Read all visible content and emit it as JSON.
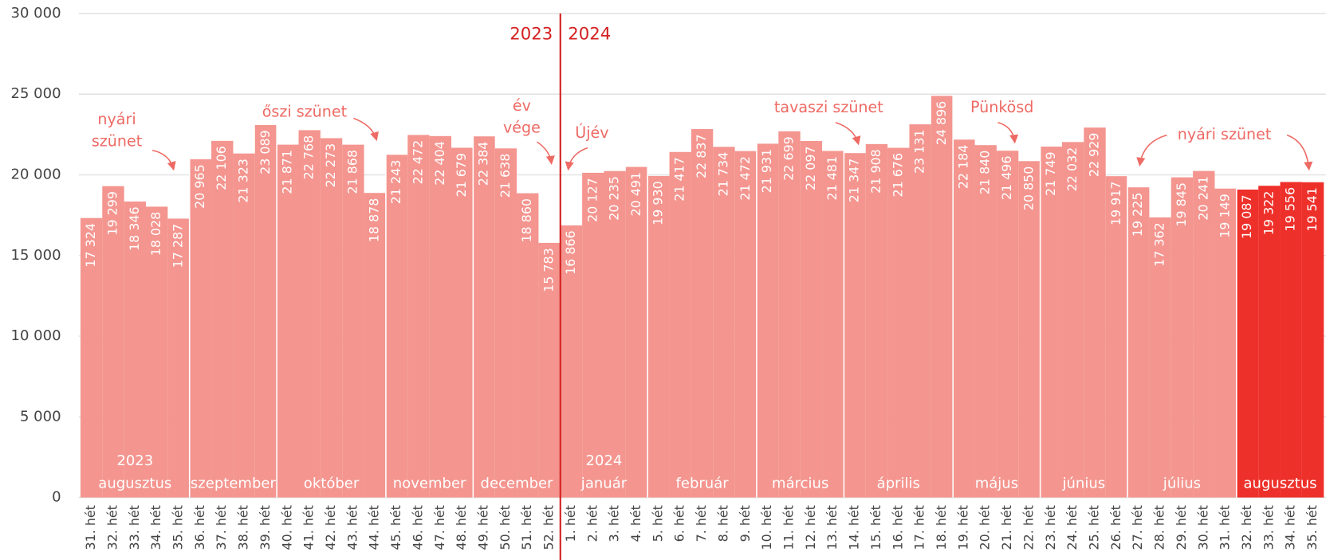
{
  "chart_data": {
    "type": "bar",
    "categories": [
      "31. hét",
      "32. hét",
      "33. hét",
      "34. hét",
      "35. hét",
      "36. hét",
      "37. hét",
      "38. hét",
      "39. hét",
      "40. hét",
      "41. hét",
      "42. hét",
      "43. hét",
      "44. hét",
      "45. hét",
      "46. hét",
      "47. hét",
      "48. hét",
      "49. hét",
      "50. hét",
      "51. hét",
      "52. hét",
      "1. hét",
      "2. hét",
      "3. hét",
      "4. hét",
      "5. hét",
      "6. hét",
      "7. hét",
      "8. hét",
      "9. hét",
      "10. hét",
      "11. hét",
      "12. hét",
      "13. hét",
      "14. hét",
      "15. hét",
      "16. hét",
      "17. hét",
      "18. hét",
      "19. hét",
      "20. hét",
      "21. hét",
      "22. hét",
      "23. hét",
      "24. hét",
      "25. hét",
      "26. hét",
      "27. hét",
      "28. hét",
      "29. hét",
      "30. hét",
      "31. hét",
      "32. hét",
      "33. hét",
      "34. hét",
      "35. hét"
    ],
    "values": [
      17324,
      19299,
      18346,
      18028,
      17287,
      20965,
      22106,
      21323,
      23089,
      21871,
      22768,
      22273,
      21868,
      18878,
      21243,
      22472,
      22404,
      21679,
      22384,
      21638,
      18860,
      15783,
      16866,
      20127,
      20235,
      20491,
      19930,
      21417,
      22837,
      21734,
      21472,
      21931,
      22699,
      22097,
      21481,
      21347,
      21908,
      21676,
      23131,
      24896,
      22184,
      21840,
      21496,
      20850,
      21749,
      22032,
      22929,
      19917,
      19225,
      17362,
      19845,
      20241,
      19149,
      19087,
      19322,
      19556,
      19541
    ],
    "value_labels": [
      "17 324",
      "19 299",
      "18 346",
      "18 028",
      "17 287",
      "20 965",
      "22 106",
      "21 323",
      "23 089",
      "21 871",
      "22 768",
      "22 273",
      "21 868",
      "18 878",
      "21 243",
      "22 472",
      "22 404",
      "21 679",
      "22 384",
      "21 638",
      "18 860",
      "15 783",
      "16 866",
      "20 127",
      "20 235",
      "20 491",
      "19 930",
      "21 417",
      "22 837",
      "21 734",
      "21 472",
      "21 931",
      "22 699",
      "22 097",
      "21 481",
      "21 347",
      "21 908",
      "21 676",
      "23 131",
      "24 896",
      "22 184",
      "21 840",
      "21 496",
      "20 850",
      "21 749",
      "22 032",
      "22 929",
      "19 917",
      "19 225",
      "17 362",
      "19 845",
      "20 241",
      "19 149",
      "19 087",
      "19 322",
      "19 556",
      "19 541"
    ],
    "colors": [
      "#f4958f",
      "#f4958f",
      "#f4958f",
      "#f4958f",
      "#f4958f",
      "#f4958f",
      "#f4958f",
      "#f4958f",
      "#f4958f",
      "#f4958f",
      "#f4958f",
      "#f4958f",
      "#f4958f",
      "#f4958f",
      "#f4958f",
      "#f4958f",
      "#f4958f",
      "#f4958f",
      "#f4958f",
      "#f4958f",
      "#f4958f",
      "#f4958f",
      "#f4958f",
      "#f4958f",
      "#f4958f",
      "#f4958f",
      "#f4958f",
      "#f4958f",
      "#f4958f",
      "#f4958f",
      "#f4958f",
      "#f4958f",
      "#f4958f",
      "#f4958f",
      "#f4958f",
      "#f4958f",
      "#f4958f",
      "#f4958f",
      "#f4958f",
      "#f4958f",
      "#f4958f",
      "#f4958f",
      "#f4958f",
      "#f4958f",
      "#f4958f",
      "#f4958f",
      "#f4958f",
      "#f4958f",
      "#f4958f",
      "#f4958f",
      "#f4958f",
      "#f4958f",
      "#f4958f",
      "#ee302a",
      "#ee302a",
      "#ee302a",
      "#ee302a"
    ],
    "ylim": [
      0,
      30000
    ],
    "yticks": [
      0,
      {
        "value": 5000,
        "label": "5 000"
      },
      {
        "value": 10000,
        "label": "10 000"
      },
      {
        "value": 15000,
        "label": "15 000"
      },
      {
        "value": 20000,
        "label": "20 000"
      },
      {
        "value": 25000,
        "label": "25 000"
      },
      {
        "value": 30000,
        "label": "30 000"
      }
    ],
    "grid": true,
    "months": [
      {
        "label": "augusztus",
        "year": "2023"
      },
      {
        "label": "szeptember"
      },
      {
        "label": "október"
      },
      {
        "label": "november"
      },
      {
        "label": "december"
      },
      {
        "label": "január",
        "year": "2024"
      },
      {
        "label": "február"
      },
      {
        "label": "március"
      },
      {
        "label": "április"
      },
      {
        "label": "május"
      },
      {
        "label": "június"
      },
      {
        "label": "július"
      },
      {
        "label": "augusztus"
      }
    ],
    "year_divider": {
      "left": "2023",
      "right": "2024"
    },
    "annotations": [
      {
        "lines": [
          "nyári",
          "szünet"
        ]
      },
      {
        "lines": [
          "őszi szünet"
        ]
      },
      {
        "lines": [
          "év",
          "vége"
        ]
      },
      {
        "lines": [
          "Újév"
        ]
      },
      {
        "lines": [
          "tavaszi szünet"
        ]
      },
      {
        "lines": [
          "Pünkösd"
        ]
      },
      {
        "lines": [
          "nyári szünet"
        ]
      }
    ]
  }
}
